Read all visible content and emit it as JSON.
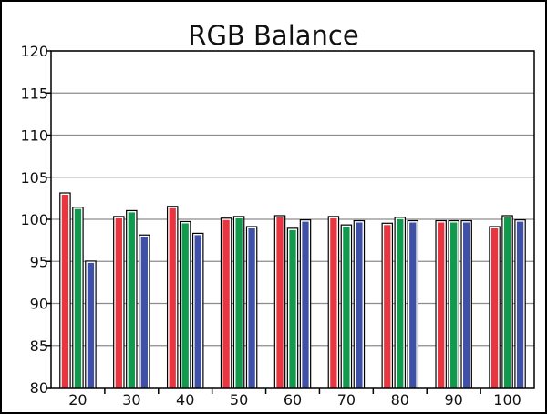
{
  "chart_data": {
    "type": "bar",
    "title": "RGB Balance",
    "xlabel": "",
    "ylabel": "",
    "categories": [
      "20",
      "30",
      "40",
      "50",
      "60",
      "70",
      "80",
      "90",
      "100"
    ],
    "ylim": [
      80,
      120
    ],
    "yticks": [
      "80",
      "85",
      "90",
      "95",
      "100",
      "105",
      "110",
      "115",
      "120"
    ],
    "grid": true,
    "legend": "none",
    "series": [
      {
        "color": "#e8353f",
        "values": [
          103.2,
          100.4,
          101.6,
          100.2,
          100.5,
          100.4,
          99.6,
          99.9,
          99.2
        ]
      },
      {
        "color": "#119a4e",
        "values": [
          101.5,
          101.1,
          99.8,
          100.4,
          99.0,
          99.4,
          100.3,
          99.9,
          100.5
        ]
      },
      {
        "color": "#3f51a7",
        "values": [
          95.1,
          98.2,
          98.4,
          99.2,
          100.0,
          99.9,
          99.9,
          99.9,
          100.0
        ]
      }
    ]
  }
}
